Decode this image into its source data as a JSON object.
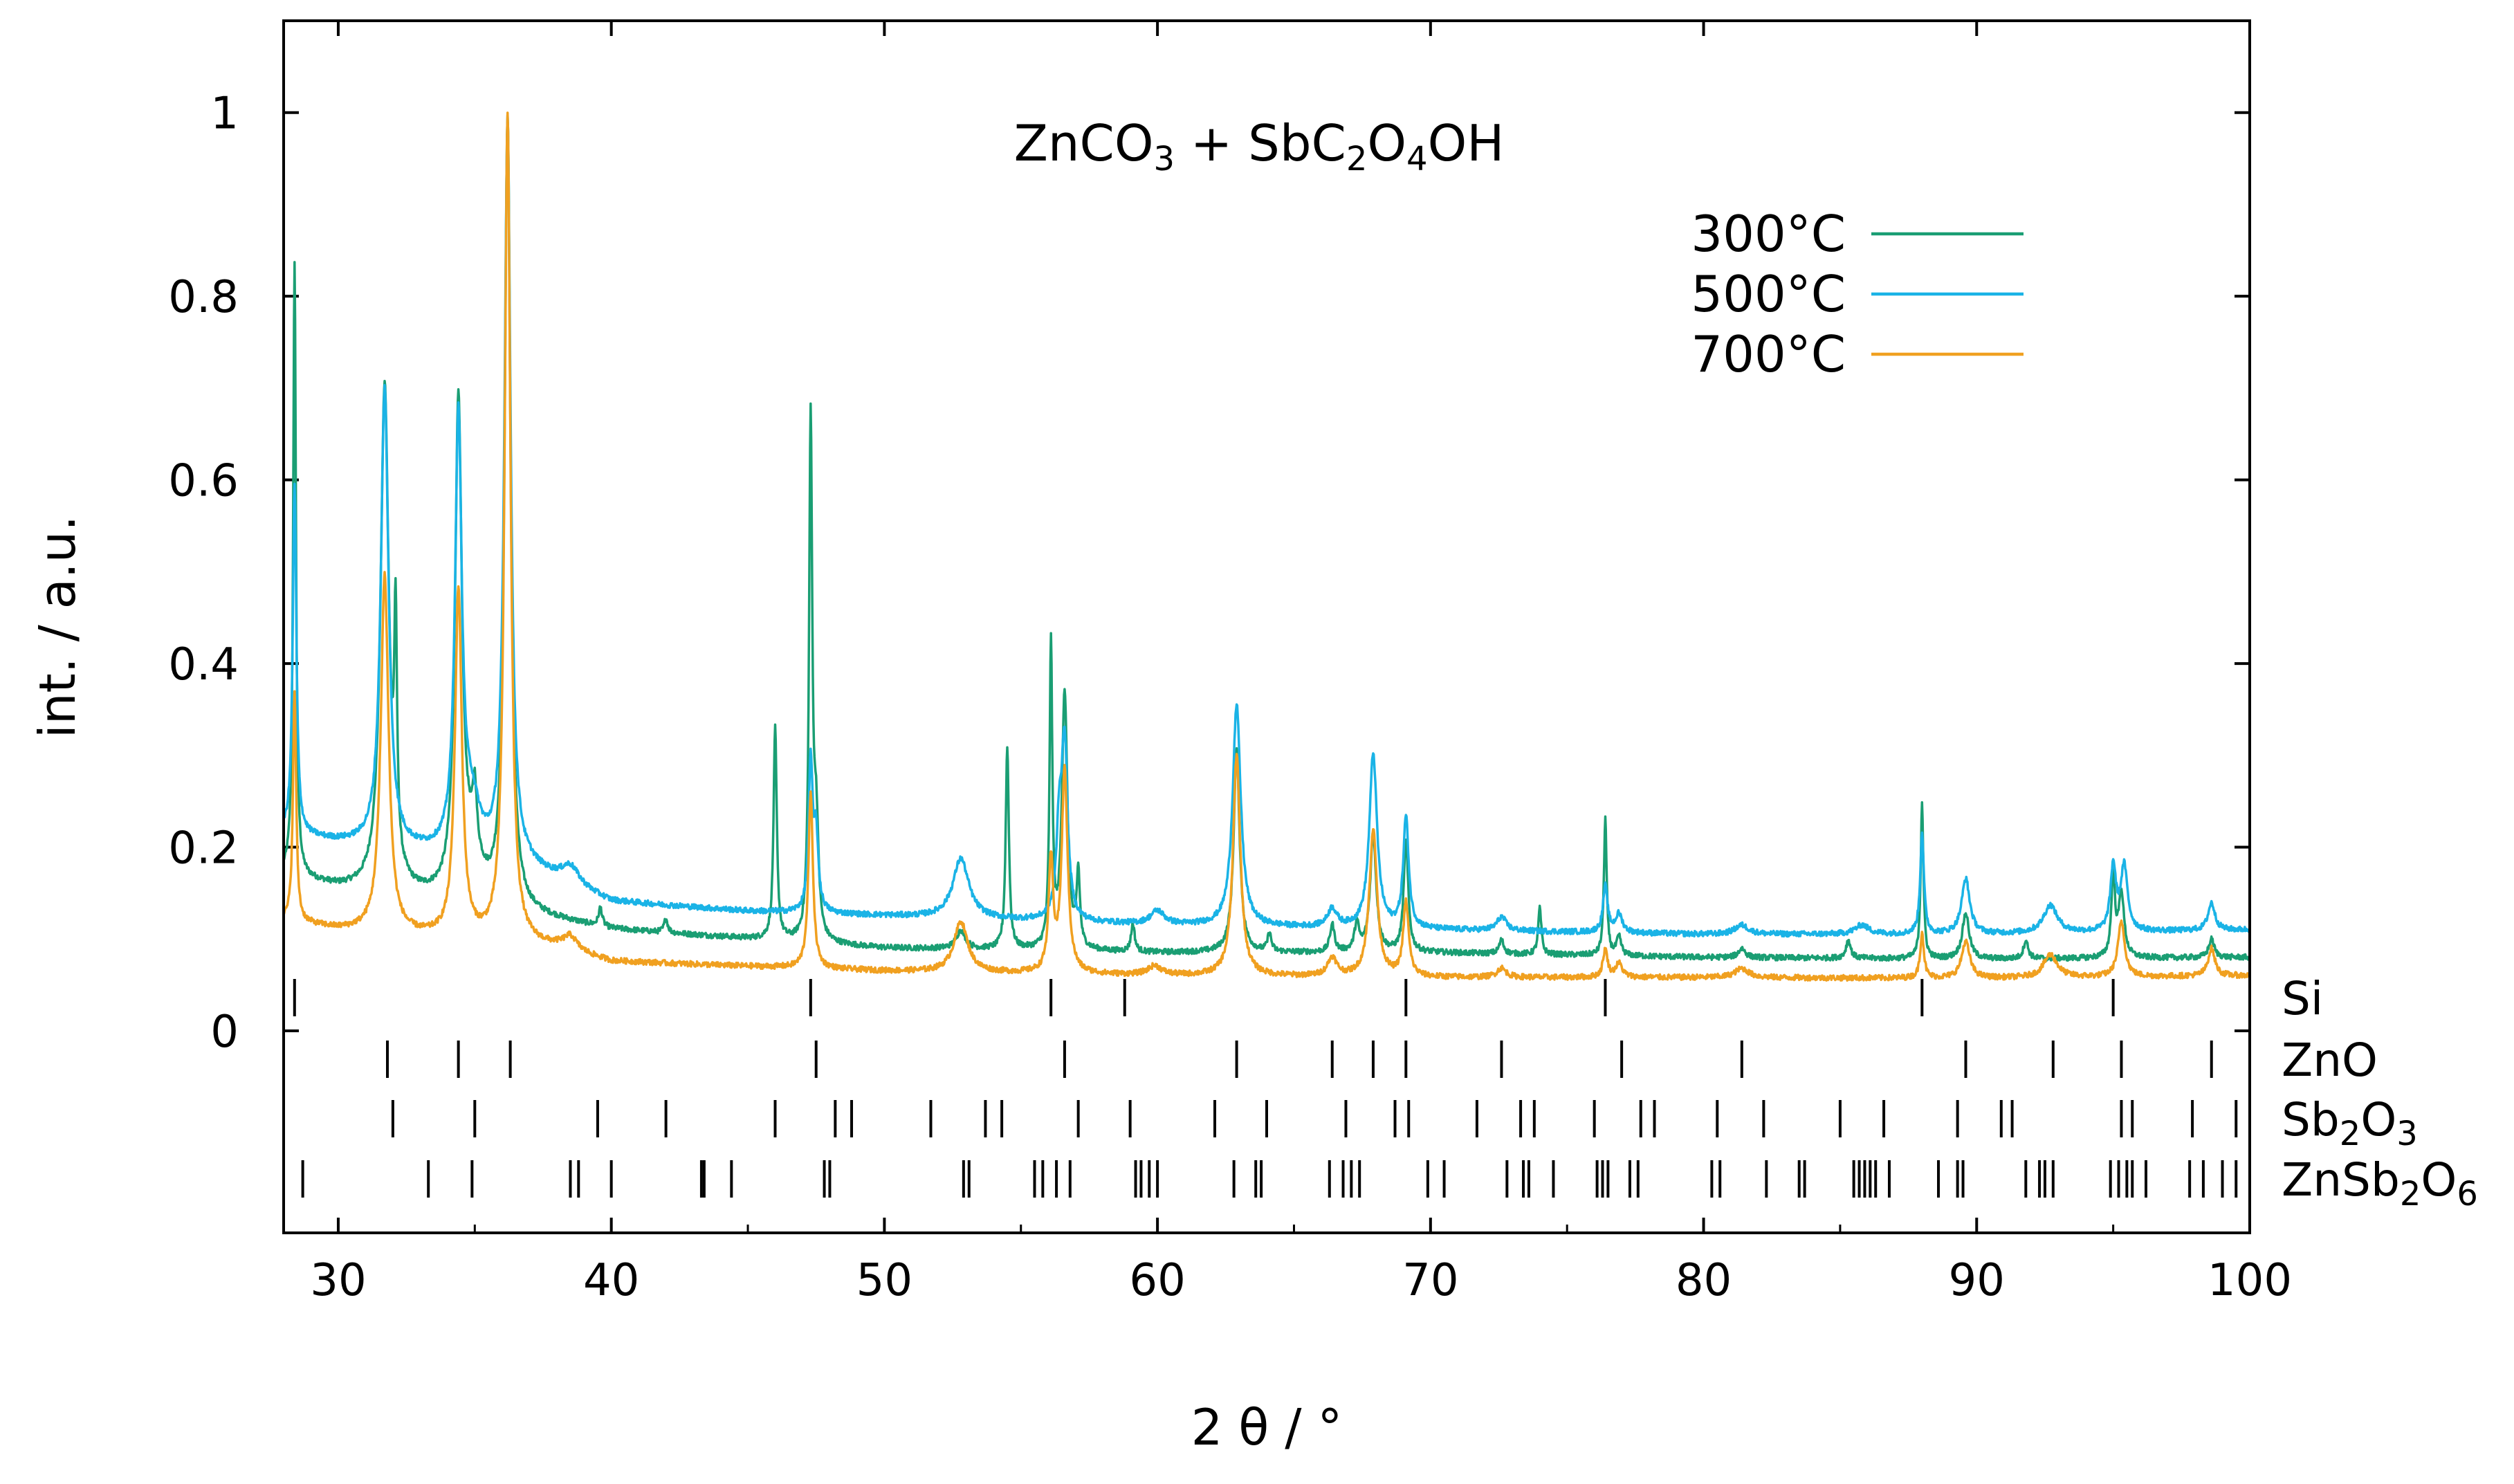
{
  "chart_data": {
    "type": "line",
    "title": "",
    "annotation": {
      "parts": [
        {
          "t": "ZnCO"
        },
        {
          "t": "3",
          "sub": true
        },
        {
          "t": " + SbC"
        },
        {
          "t": "2",
          "sub": true
        },
        {
          "t": "O"
        },
        {
          "t": "4",
          "sub": true
        },
        {
          "t": "OH"
        }
      ]
    },
    "xlabel": "2 θ / °",
    "ylabel": "int. / a.u.",
    "xlim": [
      28,
      100
    ],
    "ylim": [
      -0.22,
      1.1
    ],
    "xticks": [
      30,
      40,
      50,
      60,
      70,
      80,
      90,
      100
    ],
    "xtick_labels": [
      "30",
      "40",
      "50",
      "60",
      "70",
      "80",
      "90",
      "100"
    ],
    "yticks": [
      0,
      0.2,
      0.4,
      0.6,
      0.8,
      1
    ],
    "ytick_labels": [
      "0",
      "0.2",
      "0.4",
      "0.6",
      "0.8",
      "1"
    ],
    "legend_position": "top-right",
    "series": [
      {
        "name": "300°C",
        "color": "#1a9e73",
        "baseline": [
          [
            28,
            0.17
          ],
          [
            30,
            0.155
          ],
          [
            34,
            0.14
          ],
          [
            38,
            0.12
          ],
          [
            40,
            0.11
          ],
          [
            50,
            0.09
          ],
          [
            60,
            0.085
          ],
          [
            70,
            0.085
          ],
          [
            80,
            0.08
          ],
          [
            90,
            0.078
          ],
          [
            100,
            0.08
          ]
        ],
        "peaks": [
          [
            28.4,
            0.67,
            0.06
          ],
          [
            31.7,
            0.55,
            0.18
          ],
          [
            32.1,
            0.25,
            0.06
          ],
          [
            34.4,
            0.53,
            0.15
          ],
          [
            34.9,
            0.05,
            0.4
          ],
          [
            35.0,
            0.06,
            0.08
          ],
          [
            36.2,
            0.86,
            0.13
          ],
          [
            39.6,
            0.02,
            0.08
          ],
          [
            42.0,
            0.015,
            0.08
          ],
          [
            46.0,
            0.23,
            0.07
          ],
          [
            47.3,
            0.56,
            0.07
          ],
          [
            47.5,
            0.12,
            0.1
          ],
          [
            52.8,
            0.02,
            0.2
          ],
          [
            54.5,
            0.22,
            0.07
          ],
          [
            56.1,
            0.33,
            0.06
          ],
          [
            56.6,
            0.28,
            0.12
          ],
          [
            57.1,
            0.08,
            0.07
          ],
          [
            59.1,
            0.03,
            0.08
          ],
          [
            62.9,
            0.22,
            0.13
          ],
          [
            64.1,
            0.02,
            0.08
          ],
          [
            66.4,
            0.03,
            0.1
          ],
          [
            67.3,
            0.03,
            0.1
          ],
          [
            67.9,
            0.13,
            0.13
          ],
          [
            69.1,
            0.12,
            0.1
          ],
          [
            72.6,
            0.015,
            0.1
          ],
          [
            74.0,
            0.05,
            0.07
          ],
          [
            76.4,
            0.15,
            0.06
          ],
          [
            76.9,
            0.02,
            0.1
          ],
          [
            81.4,
            0.01,
            0.15
          ],
          [
            85.3,
            0.02,
            0.1
          ],
          [
            88.0,
            0.17,
            0.06
          ],
          [
            89.6,
            0.05,
            0.15
          ],
          [
            91.8,
            0.02,
            0.1
          ],
          [
            95.0,
            0.09,
            0.08
          ],
          [
            95.3,
            0.07,
            0.12
          ],
          [
            98.6,
            0.02,
            0.12
          ]
        ]
      },
      {
        "name": "500°C",
        "color": "#1ab3e6",
        "baseline": [
          [
            28,
            0.215
          ],
          [
            30,
            0.205
          ],
          [
            34,
            0.19
          ],
          [
            37,
            0.175
          ],
          [
            40,
            0.14
          ],
          [
            45,
            0.13
          ],
          [
            50,
            0.125
          ],
          [
            60,
            0.115
          ],
          [
            70,
            0.11
          ],
          [
            80,
            0.105
          ],
          [
            90,
            0.105
          ],
          [
            100,
            0.11
          ]
        ],
        "peaks": [
          [
            28.4,
            0.38,
            0.08
          ],
          [
            31.7,
            0.5,
            0.17
          ],
          [
            34.4,
            0.47,
            0.15
          ],
          [
            34.9,
            0.05,
            0.35
          ],
          [
            36.2,
            0.8,
            0.14
          ],
          [
            38.5,
            0.02,
            0.4
          ],
          [
            47.3,
            0.16,
            0.09
          ],
          [
            47.5,
            0.08,
            0.1
          ],
          [
            52.8,
            0.065,
            0.35
          ],
          [
            56.4,
            0.09,
            0.12
          ],
          [
            56.6,
            0.19,
            0.13
          ],
          [
            60.0,
            0.015,
            0.3
          ],
          [
            62.9,
            0.24,
            0.18
          ],
          [
            66.4,
            0.02,
            0.2
          ],
          [
            67.9,
            0.19,
            0.17
          ],
          [
            69.1,
            0.12,
            0.12
          ],
          [
            72.6,
            0.015,
            0.2
          ],
          [
            76.4,
            0.05,
            0.1
          ],
          [
            76.9,
            0.02,
            0.15
          ],
          [
            81.4,
            0.01,
            0.3
          ],
          [
            85.8,
            0.01,
            0.3
          ],
          [
            88.0,
            0.11,
            0.08
          ],
          [
            89.6,
            0.06,
            0.18
          ],
          [
            92.7,
            0.03,
            0.3
          ],
          [
            95.0,
            0.07,
            0.12
          ],
          [
            95.4,
            0.07,
            0.15
          ],
          [
            98.6,
            0.03,
            0.15
          ]
        ]
      },
      {
        "name": "700°C",
        "color": "#f0a020",
        "baseline": [
          [
            28,
            0.12
          ],
          [
            30,
            0.11
          ],
          [
            34,
            0.1
          ],
          [
            38,
            0.09
          ],
          [
            40,
            0.075
          ],
          [
            50,
            0.065
          ],
          [
            60,
            0.06
          ],
          [
            70,
            0.058
          ],
          [
            80,
            0.058
          ],
          [
            90,
            0.057
          ],
          [
            100,
            0.06
          ]
        ],
        "peaks": [
          [
            28.4,
            0.25,
            0.07
          ],
          [
            31.7,
            0.39,
            0.17
          ],
          [
            34.4,
            0.38,
            0.15
          ],
          [
            36.2,
            0.9,
            0.13
          ],
          [
            38.5,
            0.015,
            0.3
          ],
          [
            47.3,
            0.19,
            0.1
          ],
          [
            52.8,
            0.055,
            0.3
          ],
          [
            56.1,
            0.12,
            0.1
          ],
          [
            56.6,
            0.22,
            0.13
          ],
          [
            59.9,
            0.01,
            0.3
          ],
          [
            62.9,
            0.24,
            0.16
          ],
          [
            66.4,
            0.02,
            0.2
          ],
          [
            67.9,
            0.16,
            0.17
          ],
          [
            69.1,
            0.08,
            0.12
          ],
          [
            72.6,
            0.01,
            0.2
          ],
          [
            76.4,
            0.03,
            0.1
          ],
          [
            76.9,
            0.015,
            0.15
          ],
          [
            81.4,
            0.01,
            0.3
          ],
          [
            88.0,
            0.05,
            0.08
          ],
          [
            89.6,
            0.04,
            0.18
          ],
          [
            92.7,
            0.025,
            0.3
          ],
          [
            95.3,
            0.06,
            0.15
          ],
          [
            98.6,
            0.03,
            0.15
          ]
        ]
      }
    ],
    "reference_phases": [
      {
        "name": "Si",
        "parts": [
          {
            "t": "Si"
          }
        ],
        "positions": [
          28.4,
          47.3,
          56.1,
          58.8,
          69.1,
          76.4,
          88.0,
          95.0
        ]
      },
      {
        "name": "ZnO",
        "parts": [
          {
            "t": "ZnO"
          }
        ],
        "positions": [
          31.8,
          34.4,
          36.3,
          47.5,
          56.6,
          62.9,
          66.4,
          67.9,
          69.1,
          72.6,
          77.0,
          81.4,
          89.6,
          92.8,
          95.3,
          98.6
        ]
      },
      {
        "name": "Sb2O3",
        "parts": [
          {
            "t": "Sb"
          },
          {
            "t": "2",
            "sub": true
          },
          {
            "t": "O"
          },
          {
            "t": "3",
            "sub": true
          }
        ],
        "positions": [
          32.0,
          35.0,
          39.5,
          42.0,
          46.0,
          48.2,
          48.8,
          51.7,
          53.7,
          54.3,
          57.1,
          59.0,
          62.1,
          64.0,
          66.9,
          68.7,
          69.2,
          71.7,
          73.3,
          73.8,
          76.0,
          77.7,
          78.2,
          80.5,
          82.2,
          85.0,
          86.6,
          89.3,
          90.9,
          91.3,
          95.3,
          95.7,
          97.9,
          99.5
        ]
      },
      {
        "name": "ZnSb2O6",
        "parts": [
          {
            "t": "ZnSb"
          },
          {
            "t": "2",
            "sub": true
          },
          {
            "t": "O"
          },
          {
            "t": "6",
            "sub": true
          }
        ],
        "positions": [
          28.7,
          33.3,
          34.9,
          38.5,
          38.8,
          40.0,
          43.3,
          43.4,
          44.4,
          47.8,
          48.0,
          52.9,
          53.1,
          55.5,
          55.8,
          56.3,
          56.8,
          59.2,
          59.4,
          59.7,
          60.0,
          62.8,
          63.6,
          63.8,
          66.3,
          66.8,
          67.1,
          67.4,
          69.9,
          70.5,
          72.8,
          73.4,
          73.6,
          74.5,
          76.1,
          76.3,
          76.5,
          77.3,
          77.6,
          80.3,
          80.6,
          82.3,
          83.5,
          83.7,
          85.5,
          85.7,
          85.9,
          86.1,
          86.3,
          86.8,
          88.6,
          89.3,
          89.5,
          91.8,
          92.3,
          92.5,
          92.8,
          94.9,
          95.2,
          95.5,
          95.7,
          96.2,
          97.8,
          98.3,
          99.0,
          99.5
        ]
      }
    ]
  }
}
